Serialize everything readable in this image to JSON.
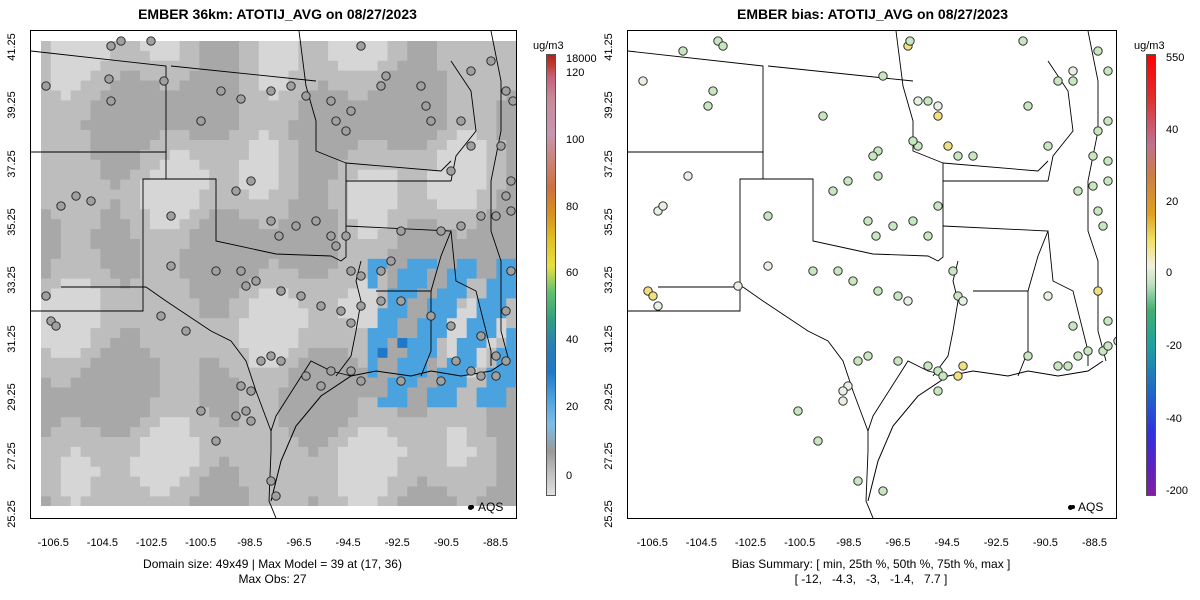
{
  "left": {
    "title": "EMBER 36km: ATOTIJ_AVG on 08/27/2023",
    "caption_line1": "Domain size: 49x49 | Max Model = 39 at (17, 36)",
    "caption_line2": "Max Obs: 27",
    "unit": "ug/m3",
    "colorbar_ticks": [
      "18000",
      "120",
      "100",
      "80",
      "60",
      "40",
      "20",
      "0"
    ],
    "legend": "AQS"
  },
  "right": {
    "title": "EMBER bias: ATOTIJ_AVG on 08/27/2023",
    "caption_line1": "Bias Summary: [ min, 25th %, 50th %, 75th %, max ]",
    "caption_line2": "[ -12,   -4.3,   -3,   -1.4,   7.7 ]",
    "unit": "ug/m3",
    "colorbar_ticks": [
      "550",
      "40",
      "20",
      "0",
      "-20",
      "-40",
      "-200"
    ],
    "legend": "AQS"
  },
  "x_ticks": [
    "-106.5",
    "-104.5",
    "-102.5",
    "-100.5",
    "-98.5",
    "-96.5",
    "-94.5",
    "-92.5",
    "-90.5",
    "-88.5"
  ],
  "y_ticks": [
    "41.25",
    "39.25",
    "37.25",
    "35.25",
    "33.25",
    "31.25",
    "29.25",
    "27.25",
    "25.25"
  ],
  "colors": {
    "grid_light": "#d6d6d6",
    "grid_mid": "#bdbdbd",
    "grid_dark": "#a8a8a8",
    "blue": "#4aa3df",
    "blue_dark": "#1f78c8",
    "station_gray": "#a0a0a0",
    "station_green": "#c8e6c0",
    "station_yellow": "#f0e080"
  }
}
